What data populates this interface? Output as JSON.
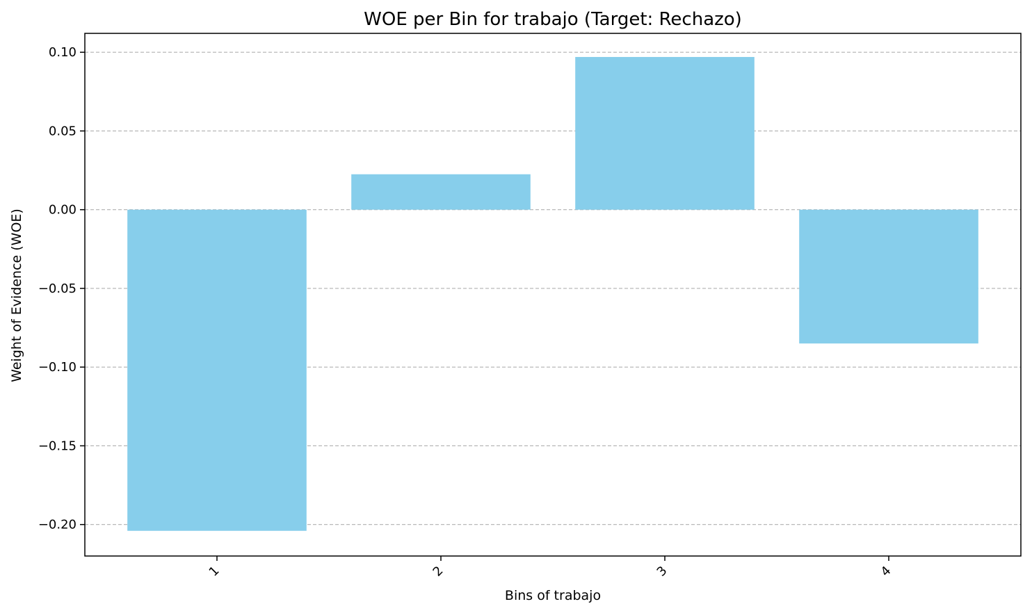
{
  "chart_data": {
    "type": "bar",
    "title": "WOE per Bin for trabajo (Target: Rechazo)",
    "xlabel": "Bins of trabajo",
    "ylabel": "Weight of Evidence (WOE)",
    "categories": [
      "1",
      "2",
      "3",
      "4"
    ],
    "values": [
      -0.204,
      0.0225,
      0.097,
      -0.085
    ],
    "ylim": [
      -0.22,
      0.112
    ],
    "yticks": [
      0.1,
      0.05,
      0.0,
      -0.05,
      -0.1,
      -0.15,
      -0.2
    ],
    "ytick_labels": [
      "0.10",
      "0.05",
      "0.00",
      "−0.05",
      "−0.10",
      "−0.15",
      "−0.20"
    ],
    "bar_color": "#87CEEB",
    "grid": "y-dashed",
    "xtick_rotation": "45"
  }
}
